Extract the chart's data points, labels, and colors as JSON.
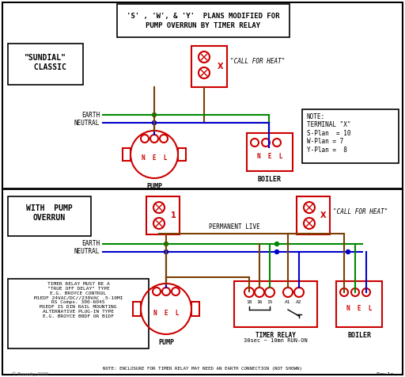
{
  "title_line1": "'S' , 'W', & 'Y'  PLANS MODIFIED FOR",
  "title_line2": "PUMP OVERRUN BY TIMER RELAY",
  "bg_color": "#ffffff",
  "red": "#cc0000",
  "green": "#008800",
  "blue": "#0000cc",
  "brown": "#7B3F00",
  "black": "#000000",
  "sundial_label": "\"SUNDIAL\"\n  CLASSIC",
  "with_pump_label": "WITH  PUMP\nOVERRUN",
  "note_text": "NOTE:\nTERMINAL \"X\"\nS-Plan  = 10\nW-Plan = 7\nY-Plan =  8",
  "timer_info": "TIMER RELAY MUST BE A\n\"TRUE OFF DELAY\" TYPE\nE.G. BROYCE CONTROL\nM1EDF 24VAC/DC//230VAC .5-10MI\nRS Comps. 300-6045\nM1EDF IS DIN RAIL MOUNTING\nALTERNATIVE PLUG-IN TYPE\nE.G. BROYCE B8DF OR B1DF",
  "bottom_note": "NOTE: ENCLOSURE FOR TIMER RELAY MAY NEED AN EARTH CONNECTION (NOT SHOWN)",
  "timer_label_line1": "TIMER RELAY",
  "timer_label_line2": "30sec ~ 10mn RUN-ON",
  "pump_label": "PUMP",
  "boiler_label": "BOILER",
  "perm_live": "PERMANENT LIVE",
  "call_heat_top": "\"CALL FOR HEAT\"",
  "call_heat_bot": "\"CALL FOR HEAT\"",
  "earth_label": "EARTH",
  "neutral_label": "NEUTRAL",
  "watermark_left": "© Brewsby 2009",
  "watermark_right": "Rev 1a"
}
